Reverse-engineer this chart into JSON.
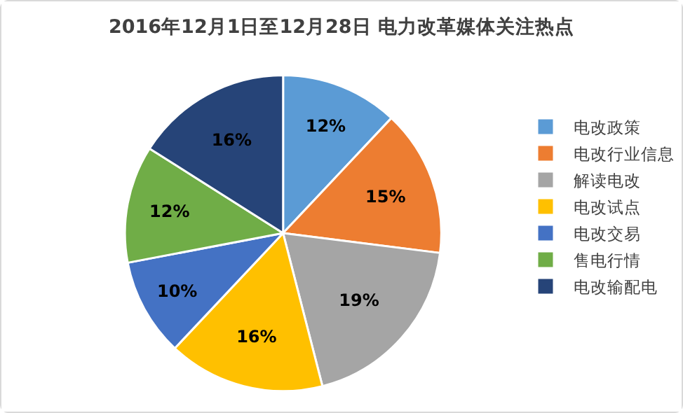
{
  "chart_data": {
    "type": "pie",
    "title": "2016年12月1日至12月28日 电力改革媒体关注热点",
    "categories": [
      "电改政策",
      "电改行业信息",
      "解读电改",
      "电改试点",
      "电改交易",
      "售电行情",
      "电改输配电"
    ],
    "values": [
      12,
      15,
      19,
      16,
      10,
      12,
      16
    ],
    "value_labels": [
      "12%",
      "15%",
      "19%",
      "16%",
      "10%",
      "12%",
      "16%"
    ],
    "colors": [
      "#5b9bd5",
      "#ed7d31",
      "#a5a5a5",
      "#ffc000",
      "#4472c4",
      "#70ad47",
      "#264478"
    ],
    "legend": "right"
  }
}
